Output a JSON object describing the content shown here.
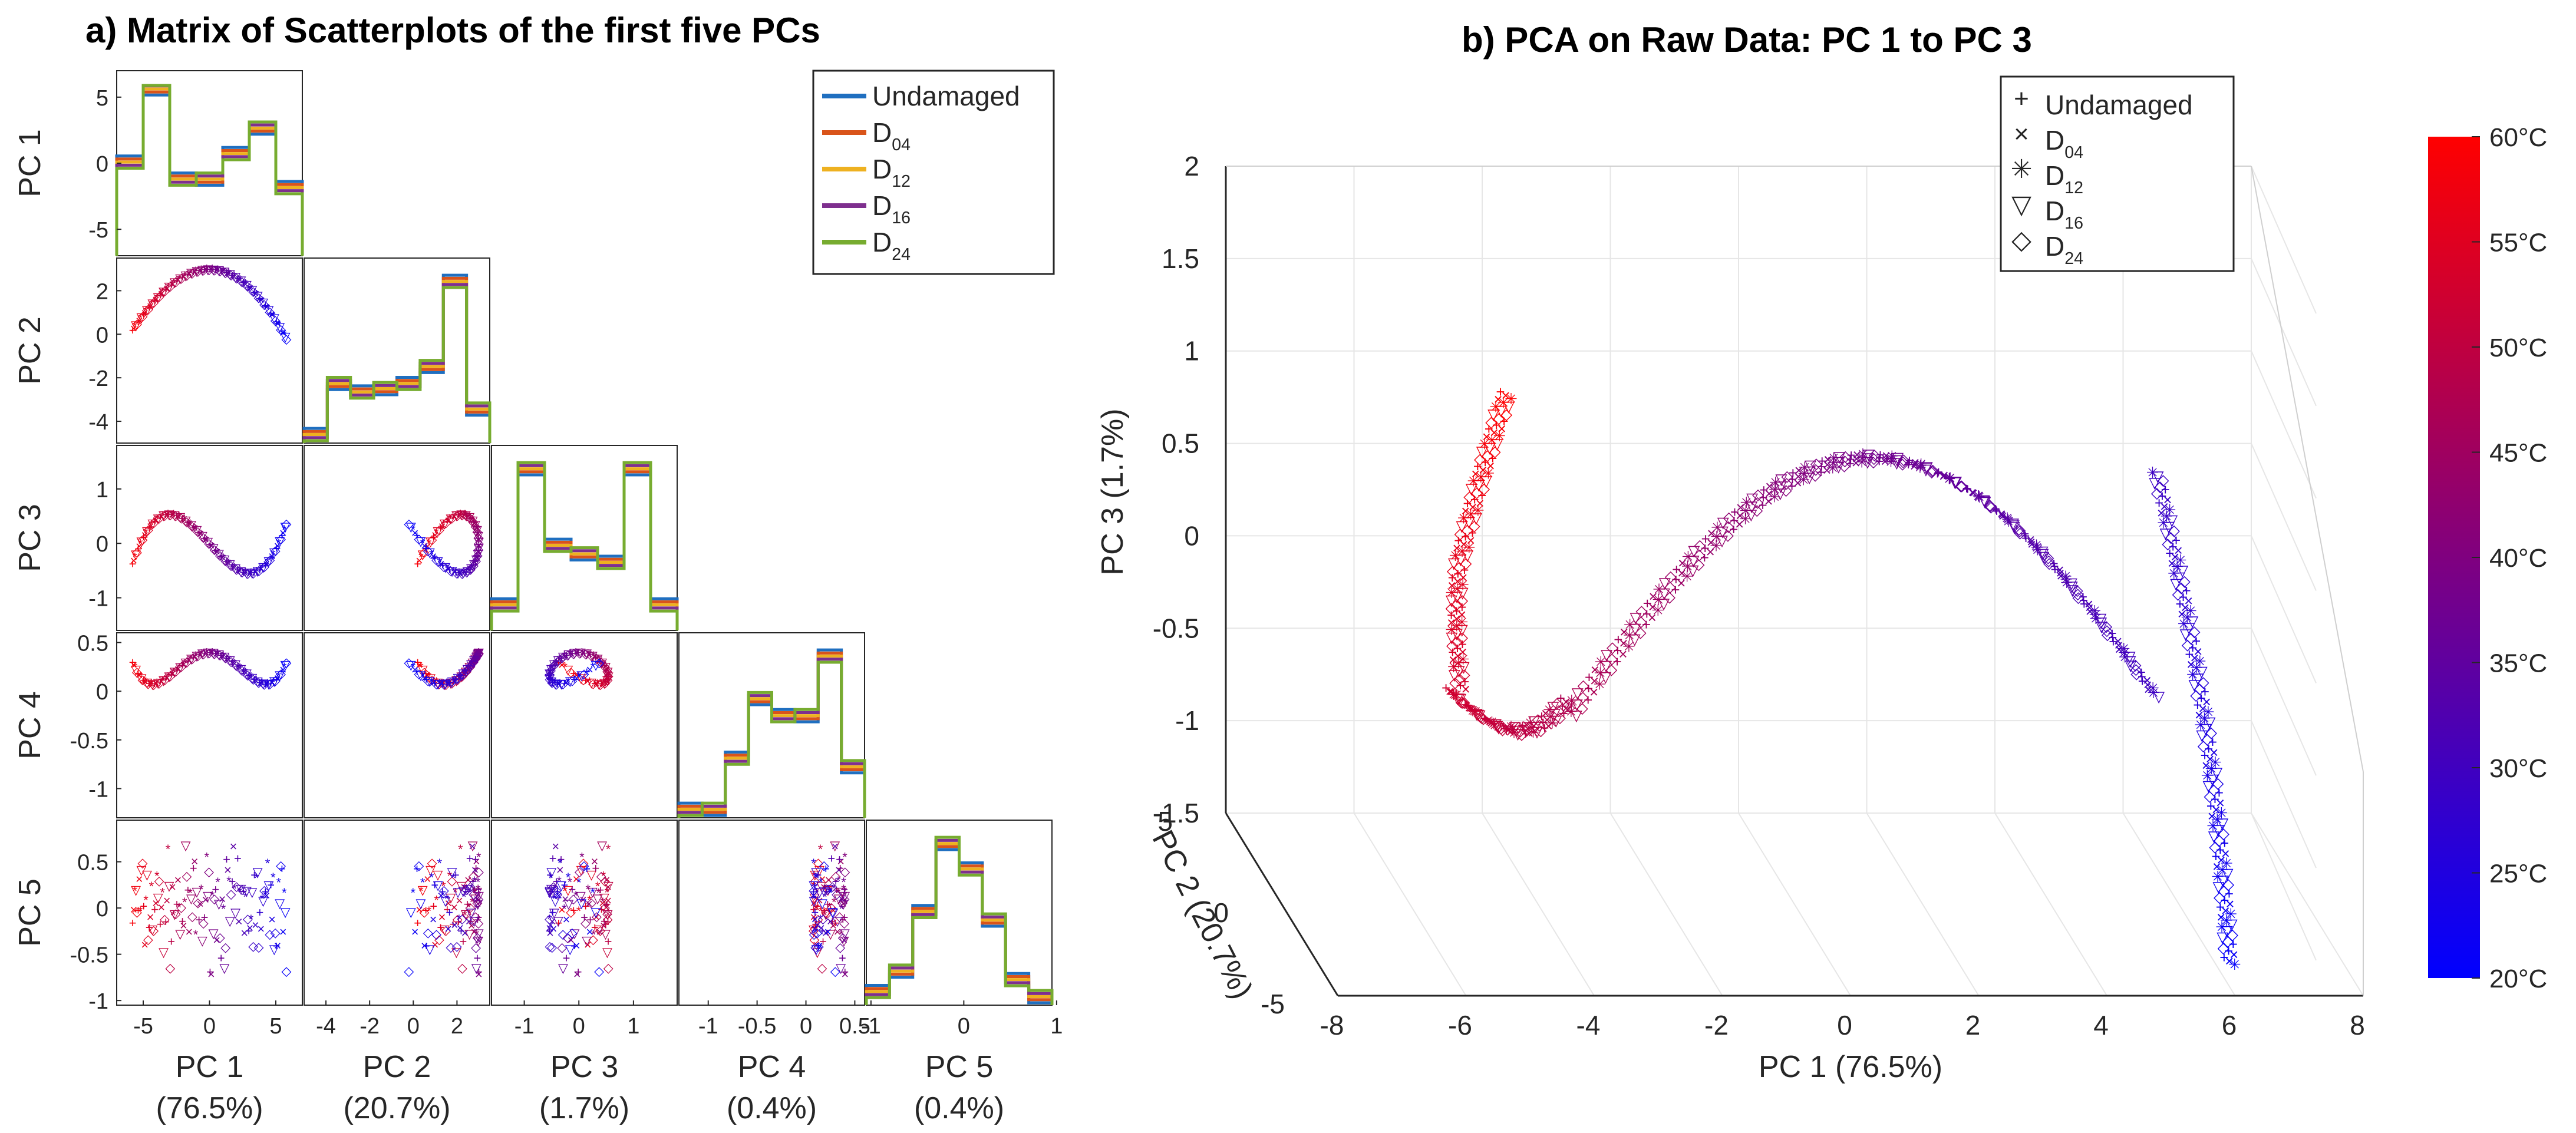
{
  "colors": {
    "undamaged": "#1f6fc0",
    "d04": "#d9541a",
    "d12": "#eeb120",
    "d16": "#7e2f8e",
    "d24": "#77ac30",
    "cold": "#0000ff",
    "hot": "#ff0000",
    "axis": "#262626",
    "grid": "#e6e6e6"
  },
  "chart_data": [
    {
      "type": "scatter",
      "panel": "matrix",
      "title": "a) Matrix of Scatterplots of the first five PCs",
      "variables": [
        {
          "name": "PC 1",
          "xlabel": "PC 1",
          "xlabel2": "(76.5%)",
          "ylabel": "PC 1",
          "ticks": [
            "-5",
            "0",
            "5"
          ]
        },
        {
          "name": "PC 2",
          "xlabel": "PC 2",
          "xlabel2": "(20.7%)",
          "ylabel": "PC 2",
          "ticks": [
            "-4",
            "-2",
            "0",
            "2"
          ]
        },
        {
          "name": "PC 3",
          "xlabel": "PC 3",
          "xlabel2": "(1.7%)",
          "ylabel": "PC 3",
          "ticks": [
            "-1",
            "0",
            "1"
          ]
        },
        {
          "name": "PC 4",
          "xlabel": "PC 4",
          "xlabel2": "(0.4%)",
          "ylabel": "PC 4",
          "ticks": [
            "-1",
            "-0.5",
            "0",
            "0.5"
          ]
        },
        {
          "name": "PC 5",
          "xlabel": "PC 5",
          "xlabel2": "(0.4%)",
          "ylabel": "PC 5",
          "ticks": [
            "-1",
            "0",
            "1"
          ]
        }
      ],
      "diag_ytick_labels": [
        "5",
        "0",
        "-5"
      ],
      "row_ytick_labels": [
        [
          "5",
          "0",
          "-5"
        ],
        [
          "2",
          "0",
          "-2",
          "-4"
        ],
        [
          "1",
          "0",
          "-1"
        ],
        [
          "0.5",
          "0",
          "-0.5",
          "-1"
        ],
        [
          "0.5",
          "0",
          "-0.5",
          "-1"
        ]
      ],
      "legend": [
        {
          "key": "undamaged",
          "base": "Undamaged",
          "sub": ""
        },
        {
          "key": "d04",
          "base": "D",
          "sub": "04"
        },
        {
          "key": "d12",
          "base": "D",
          "sub": "12"
        },
        {
          "key": "d16",
          "base": "D",
          "sub": "16"
        },
        {
          "key": "d24",
          "base": "D",
          "sub": "24"
        }
      ]
    },
    {
      "type": "scatter",
      "panel": "3d",
      "title": "b) PCA on Raw Data: PC 1 to PC 3",
      "xlabel": "PC 1 (76.5%)",
      "ylabel": "PC 2 (20.7%)",
      "zlabel": "PC 3 (1.7%)",
      "xlim": [
        -8,
        8
      ],
      "ylim": [
        -5,
        5
      ],
      "zlim": [
        -1.5,
        2
      ],
      "xticks": [
        "-8",
        "-6",
        "-4",
        "-2",
        "0",
        "2",
        "4",
        "6",
        "8"
      ],
      "yticks": [
        "5",
        "0",
        "-5"
      ],
      "zticks": [
        "2",
        "1.5",
        "1",
        "0.5",
        "0",
        "-0.5",
        "-1",
        "-1.5"
      ],
      "legend": [
        {
          "marker": "+",
          "base": "Undamaged",
          "sub": ""
        },
        {
          "marker": "×",
          "base": "D",
          "sub": "04"
        },
        {
          "marker": "✳",
          "base": "D",
          "sub": "12"
        },
        {
          "marker": "▽",
          "base": "D",
          "sub": "16"
        },
        {
          "marker": "◇",
          "base": "D",
          "sub": "24"
        }
      ],
      "colorbar": {
        "label_values": [
          "60°C",
          "55°C",
          "50°C",
          "45°C",
          "40°C",
          "35°C",
          "30°C",
          "25°C",
          "20°C"
        ],
        "range": [
          20,
          60
        ]
      },
      "grid": true
    }
  ]
}
